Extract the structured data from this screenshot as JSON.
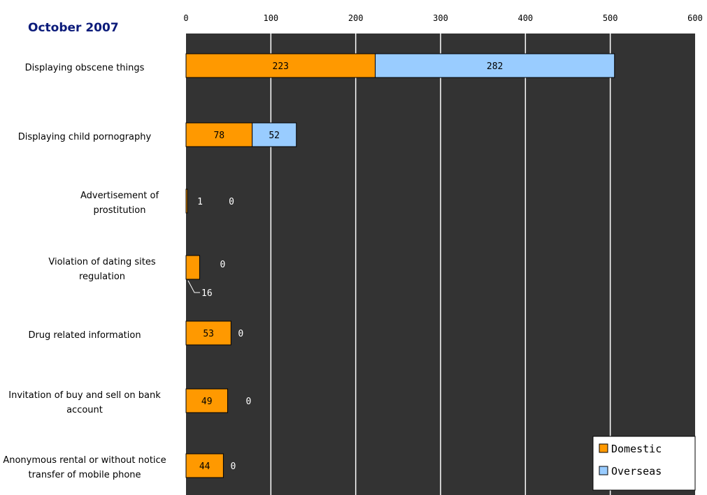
{
  "title": "October 2007",
  "chart_data": {
    "type": "bar",
    "orientation": "horizontal",
    "stacked": true,
    "title": "October 2007",
    "xlim": [
      0,
      600
    ],
    "x_ticks": [
      0,
      100,
      200,
      300,
      400,
      500,
      600
    ],
    "grid": true,
    "legend_position": "bottom-right",
    "categories": [
      "Displaying obscene things",
      "Displaying child pornography",
      "Advertisement of prostitution",
      "Violation of dating sites regulation",
      "Drug related information",
      "Invitation of buy and sell on bank account",
      "Anonymous rental or without notice transfer of mobile phone"
    ],
    "series": [
      {
        "name": "Domestic",
        "color": "#ff9900",
        "values": [
          223,
          78,
          1,
          16,
          53,
          49,
          44
        ]
      },
      {
        "name": "Overseas",
        "color": "#99ccff",
        "values": [
          282,
          52,
          0,
          0,
          0,
          0,
          0
        ]
      }
    ]
  }
}
